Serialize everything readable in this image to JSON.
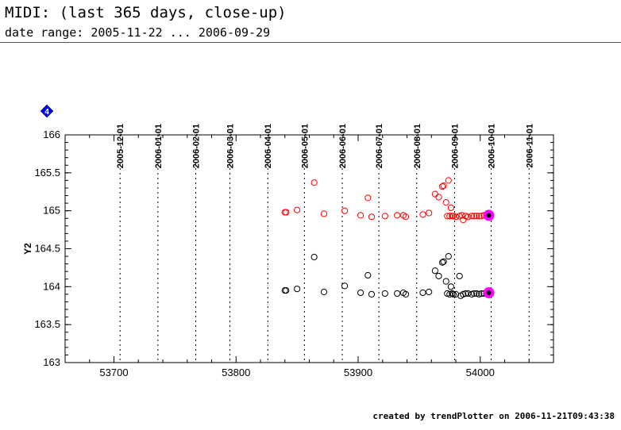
{
  "header": {
    "title": "MIDI: (last 365 days, close-up)",
    "subtitle": "date range: 2005-11-22 ... 2006-09-29"
  },
  "footer": {
    "credit": "created by trendPlotter on 2006-11-21T09:43:38"
  },
  "legend_marker": {
    "label": "4",
    "color": "#0000ff"
  },
  "chart_data": {
    "type": "scatter",
    "title": "",
    "xlabel": "",
    "ylabel": "Y2",
    "xlim": [
      53660,
      54060
    ],
    "ylim": [
      163,
      166
    ],
    "x_ticks": [
      53700,
      53800,
      53900,
      54000
    ],
    "y_ticks": [
      163,
      163.5,
      164,
      164.5,
      165,
      165.5,
      166
    ],
    "grid": false,
    "date_lines": [
      {
        "label": "2005-12-01",
        "x": 53705
      },
      {
        "label": "2006-01-01",
        "x": 53736
      },
      {
        "label": "2006-02-01",
        "x": 53767
      },
      {
        "label": "2006-03-01",
        "x": 53795
      },
      {
        "label": "2006-04-01",
        "x": 53826
      },
      {
        "label": "2006-05-01",
        "x": 53856
      },
      {
        "label": "2006-06-01",
        "x": 53887
      },
      {
        "label": "2006-07-01",
        "x": 53917
      },
      {
        "label": "2006-08-01",
        "x": 53948
      },
      {
        "label": "2006-09-01",
        "x": 53979
      },
      {
        "label": "2006-10-01",
        "x": 54009
      },
      {
        "label": "2006-11-01",
        "x": 54040
      }
    ],
    "series": [
      {
        "color": "#ff0000",
        "points": [
          [
            53840,
            164.98
          ],
          [
            53841,
            164.98
          ],
          [
            53850,
            165.01
          ],
          [
            53864,
            165.37
          ],
          [
            53872,
            164.96
          ],
          [
            53889,
            165.0
          ],
          [
            53902,
            164.94
          ],
          [
            53908,
            165.17
          ],
          [
            53911,
            164.92
          ],
          [
            53922,
            164.93
          ],
          [
            53932,
            164.94
          ],
          [
            53937,
            164.94
          ],
          [
            53939,
            164.92
          ],
          [
            53953,
            164.95
          ],
          [
            53958,
            164.97
          ],
          [
            53963,
            165.22
          ],
          [
            53966,
            165.18
          ],
          [
            53969,
            165.32
          ],
          [
            53970,
            165.33
          ],
          [
            53972,
            165.11
          ],
          [
            53974,
            165.4
          ],
          [
            53976,
            165.04
          ],
          [
            53973,
            164.93
          ],
          [
            53975,
            164.93
          ],
          [
            53977,
            164.93
          ],
          [
            53978,
            164.93
          ],
          [
            53980,
            164.92
          ],
          [
            53983,
            164.93
          ],
          [
            53985,
            164.94
          ],
          [
            53986,
            164.88
          ],
          [
            53988,
            164.93
          ],
          [
            53990,
            164.92
          ],
          [
            53993,
            164.93
          ],
          [
            53995,
            164.93
          ],
          [
            53997,
            164.93
          ],
          [
            53999,
            164.93
          ],
          [
            54001,
            164.93
          ],
          [
            54003,
            164.94
          ],
          [
            54005,
            164.93
          ]
        ]
      },
      {
        "color": "#000000",
        "points": [
          [
            53840,
            163.95
          ],
          [
            53841,
            163.95
          ],
          [
            53850,
            163.97
          ],
          [
            53864,
            164.39
          ],
          [
            53872,
            163.93
          ],
          [
            53889,
            164.01
          ],
          [
            53902,
            163.92
          ],
          [
            53908,
            164.15
          ],
          [
            53911,
            163.9
          ],
          [
            53922,
            163.91
          ],
          [
            53932,
            163.91
          ],
          [
            53937,
            163.92
          ],
          [
            53939,
            163.9
          ],
          [
            53953,
            163.92
          ],
          [
            53958,
            163.93
          ],
          [
            53963,
            164.21
          ],
          [
            53966,
            164.14
          ],
          [
            53969,
            164.32
          ],
          [
            53970,
            164.33
          ],
          [
            53972,
            164.07
          ],
          [
            53974,
            164.4
          ],
          [
            53976,
            164.0
          ],
          [
            53973,
            163.91
          ],
          [
            53975,
            163.9
          ],
          [
            53977,
            163.91
          ],
          [
            53978,
            163.9
          ],
          [
            53980,
            163.9
          ],
          [
            53983,
            164.14
          ],
          [
            53984,
            163.88
          ],
          [
            53986,
            163.9
          ],
          [
            53988,
            163.91
          ],
          [
            53990,
            163.91
          ],
          [
            53993,
            163.9
          ],
          [
            53995,
            163.91
          ],
          [
            53997,
            163.91
          ],
          [
            53999,
            163.9
          ],
          [
            54001,
            163.91
          ],
          [
            54003,
            163.91
          ],
          [
            54005,
            163.91
          ]
        ]
      }
    ],
    "highlights": [
      {
        "x": 54007,
        "y": 164.94,
        "color": "#ff00ff",
        "inner": "#000000"
      },
      {
        "x": 54007,
        "y": 163.92,
        "color": "#ff00ff",
        "inner": "#000000"
      }
    ]
  }
}
